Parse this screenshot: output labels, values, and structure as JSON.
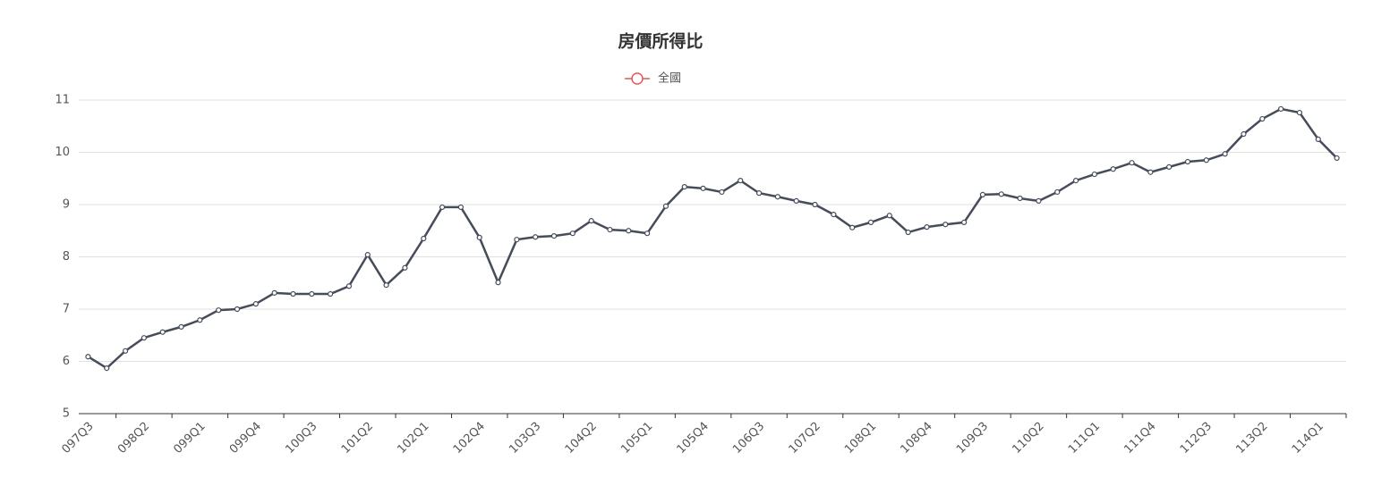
{
  "chart_data": {
    "type": "line",
    "title": "房價所得比",
    "categories": [
      "097Q3",
      null,
      null,
      "098Q2",
      null,
      null,
      "099Q1",
      null,
      null,
      "099Q4",
      null,
      null,
      "100Q3",
      null,
      null,
      "101Q2",
      null,
      null,
      "102Q1",
      null,
      null,
      "102Q4",
      null,
      null,
      "103Q3",
      null,
      null,
      "104Q2",
      null,
      null,
      "105Q1",
      null,
      null,
      "105Q4",
      null,
      null,
      "106Q3",
      null,
      null,
      "107Q2",
      null,
      null,
      "108Q1",
      null,
      null,
      "108Q4",
      null,
      null,
      "109Q3",
      null,
      null,
      "110Q2",
      null,
      null,
      "111Q1",
      null,
      null,
      "111Q4",
      null,
      null,
      "112Q3",
      null,
      null,
      "113Q2",
      null,
      null,
      "114Q1",
      null
    ],
    "series": [
      {
        "name": "全國",
        "color": "#464c5a",
        "legend_color": "#e05a5a",
        "values": [
          6.09,
          5.87,
          6.2,
          6.45,
          6.56,
          6.66,
          6.79,
          6.98,
          7.0,
          7.1,
          7.31,
          7.29,
          7.29,
          7.29,
          7.44,
          8.04,
          7.46,
          7.79,
          8.35,
          8.95,
          8.95,
          8.37,
          7.51,
          8.33,
          8.38,
          8.4,
          8.45,
          8.69,
          8.52,
          8.5,
          8.45,
          8.97,
          9.34,
          9.31,
          9.24,
          9.46,
          9.22,
          9.15,
          9.07,
          9.0,
          8.81,
          8.56,
          8.66,
          8.79,
          8.47,
          8.57,
          8.62,
          8.66,
          9.19,
          9.2,
          9.12,
          9.07,
          9.24,
          9.46,
          9.58,
          9.68,
          9.8,
          9.62,
          9.72,
          9.82,
          9.85,
          9.97,
          10.35,
          10.64,
          10.83,
          10.76,
          10.25,
          9.89
        ]
      }
    ],
    "ylim": [
      5,
      11
    ],
    "yticks": [
      5,
      6,
      7,
      8,
      9,
      10,
      11
    ],
    "grid": true
  }
}
